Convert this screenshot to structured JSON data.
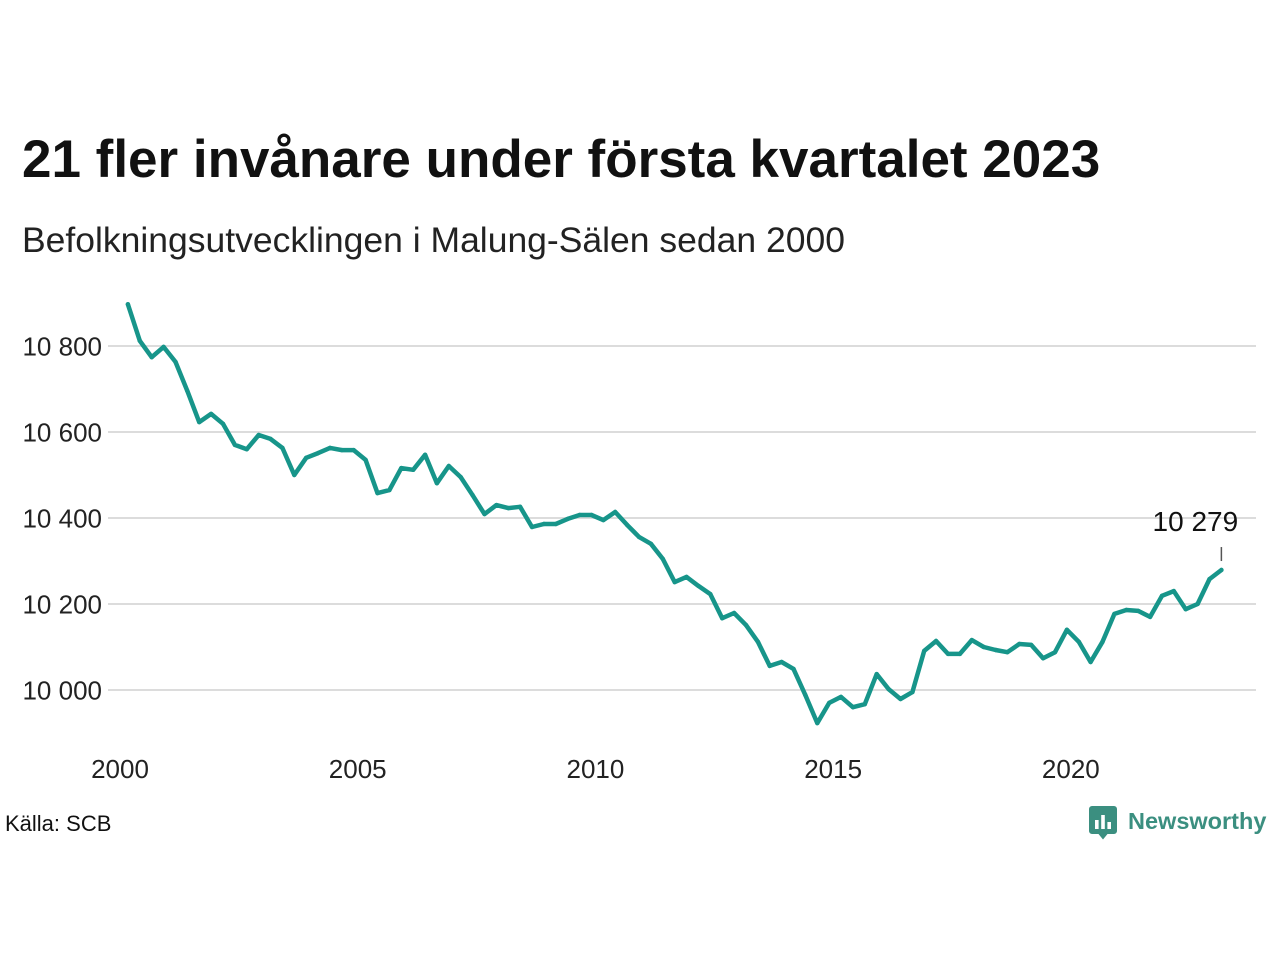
{
  "colors": {
    "line": "#17958a",
    "grid": "#dcdcdc",
    "text": "#222222",
    "connector": "#555555",
    "logo": "#3b8f80"
  },
  "footer": {
    "source": "Källa: SCB",
    "logo_text": "Newsworthy",
    "logo_icon": "newsworthy-logo-icon"
  },
  "chart_data": {
    "type": "line",
    "title": "21 fler invånare under första kvartalet 2023",
    "subtitle": "Befolkningsutvecklingen i Malung-Sälen sedan 2000",
    "grid": "horizontal",
    "legend": "none",
    "xlim": [
      "2000-01",
      "2024-01"
    ],
    "ylim": [
      9900,
      10900
    ],
    "x_ticks": [
      {
        "value": "2000-01",
        "label": "2000"
      },
      {
        "value": "2005-01",
        "label": "2005"
      },
      {
        "value": "2010-01",
        "label": "2010"
      },
      {
        "value": "2015-01",
        "label": "2015"
      },
      {
        "value": "2020-01",
        "label": "2020"
      }
    ],
    "y_ticks": [
      {
        "value": 10000,
        "label": "10 000"
      },
      {
        "value": 10200,
        "label": "10 200"
      },
      {
        "value": 10400,
        "label": "10 400"
      },
      {
        "value": 10600,
        "label": "10 600"
      },
      {
        "value": 10800,
        "label": "10 800"
      }
    ],
    "series": [
      {
        "x": [
          "2000-03",
          "2000-06",
          "2000-09",
          "2000-12",
          "2001-03",
          "2001-06",
          "2001-09",
          "2001-12",
          "2002-03",
          "2002-06",
          "2002-09",
          "2002-12",
          "2003-03",
          "2003-06",
          "2003-09",
          "2003-12",
          "2004-03",
          "2004-06",
          "2004-09",
          "2004-12",
          "2005-03",
          "2005-06",
          "2005-09",
          "2005-12",
          "2006-03",
          "2006-06",
          "2006-09",
          "2006-12",
          "2007-03",
          "2007-06",
          "2007-09",
          "2007-12",
          "2008-03",
          "2008-06",
          "2008-09",
          "2008-12",
          "2009-03",
          "2009-06",
          "2009-09",
          "2009-12",
          "2010-03",
          "2010-06",
          "2010-09",
          "2010-12",
          "2011-03",
          "2011-06",
          "2011-09",
          "2011-12",
          "2012-03",
          "2012-06",
          "2012-09",
          "2012-12",
          "2013-03",
          "2013-06",
          "2013-09",
          "2013-12",
          "2014-03",
          "2014-06",
          "2014-09",
          "2014-12",
          "2015-03",
          "2015-06",
          "2015-09",
          "2015-12",
          "2016-03",
          "2016-06",
          "2016-09",
          "2016-12",
          "2017-03",
          "2017-06",
          "2017-09",
          "2017-12",
          "2018-03",
          "2018-06",
          "2018-09",
          "2018-12",
          "2019-03",
          "2019-06",
          "2019-09",
          "2019-12",
          "2020-03",
          "2020-06",
          "2020-09",
          "2020-12",
          "2021-03",
          "2021-06",
          "2021-09",
          "2021-12",
          "2022-03",
          "2022-06",
          "2022-09",
          "2022-12",
          "2023-03"
        ],
        "values": [
          10897,
          10812,
          10774,
          10798,
          10763,
          10695,
          10623,
          10642,
          10619,
          10570,
          10560,
          10593,
          10584,
          10563,
          10500,
          10540,
          10551,
          10563,
          10558,
          10558,
          10535,
          10458,
          10465,
          10516,
          10512,
          10547,
          10481,
          10521,
          10495,
          10453,
          10409,
          10430,
          10423,
          10426,
          10379,
          10386,
          10386,
          10398,
          10407,
          10407,
          10395,
          10414,
          10384,
          10356,
          10340,
          10305,
          10251,
          10263,
          10242,
          10223,
          10167,
          10179,
          10151,
          10112,
          10056,
          10065,
          10049,
          9988,
          9923,
          9970,
          9984,
          9960,
          9967,
          10037,
          10002,
          9979,
          9995,
          10091,
          10114,
          10084,
          10084,
          10116,
          10100,
          10093,
          10088,
          10107,
          10105,
          10074,
          10088,
          10140,
          10112,
          10065,
          10112,
          10177,
          10186,
          10184,
          10170,
          10219,
          10230,
          10188,
          10200,
          10258,
          10279
        ]
      }
    ],
    "annotations": [
      {
        "x": "2023-03",
        "y": 10279,
        "text": "10 279"
      }
    ]
  }
}
